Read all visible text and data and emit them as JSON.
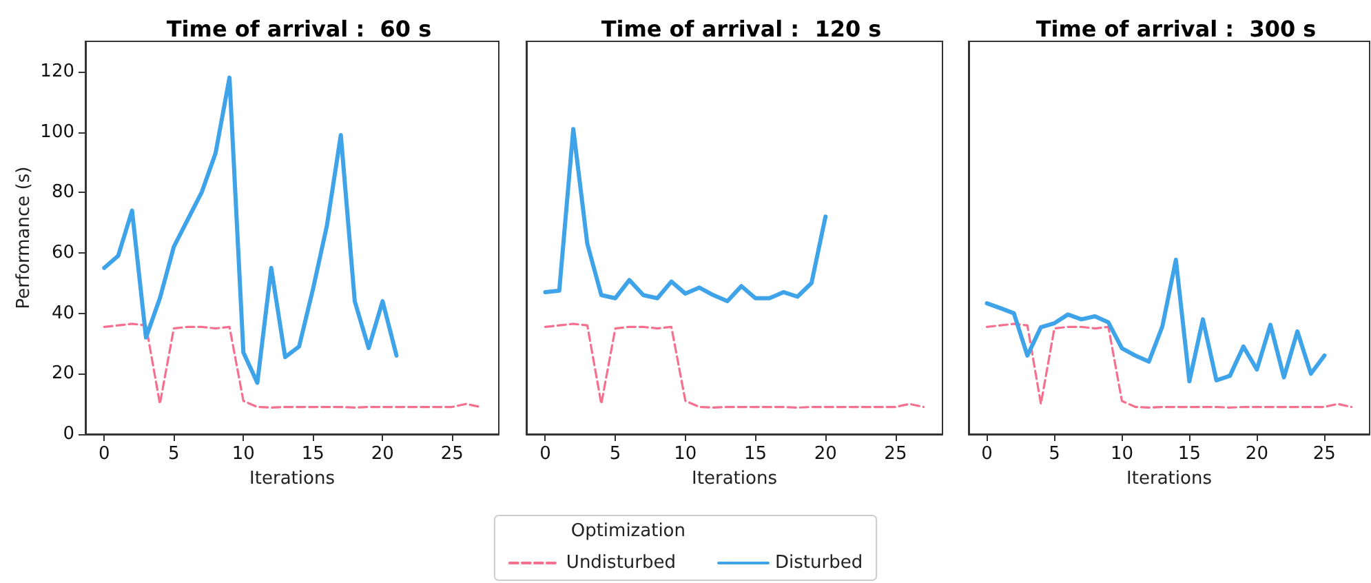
{
  "chart_data": [
    {
      "type": "line",
      "title": "Time of arrival :  60 s",
      "xlabel": "Iterations",
      "ylabel": "Performance (s)",
      "legend_title": "Optimization",
      "legend": "bottom",
      "grid": false,
      "marker": "none",
      "xlim": [
        -1.35,
        28.35
      ],
      "xticks": [
        0,
        5,
        10,
        15,
        20,
        25
      ],
      "ylim": [
        0,
        130
      ],
      "yticks": [
        0,
        20,
        40,
        60,
        80,
        100,
        120
      ],
      "series": [
        {
          "name": "Undisturbed",
          "color": "#f5708e",
          "line_style": "dashed",
          "x": [
            0,
            1,
            2,
            3,
            4,
            5,
            6,
            7,
            8,
            9,
            10,
            11,
            12,
            13,
            14,
            15,
            16,
            17,
            18,
            19,
            20,
            21,
            22,
            23,
            24,
            25,
            26,
            27
          ],
          "values": [
            35.5,
            36,
            36.5,
            36,
            10,
            35,
            35.5,
            35.5,
            35,
            35.5,
            11,
            9,
            8.8,
            9,
            9,
            9,
            9,
            9,
            8.8,
            9,
            9,
            9,
            9,
            9,
            9,
            9,
            10,
            9
          ]
        },
        {
          "name": "Disturbed",
          "color": "#3ea3e8",
          "line_style": "solid",
          "x": [
            0,
            1,
            2,
            3,
            4,
            5,
            6,
            7,
            8,
            9,
            10,
            11,
            12,
            13,
            14,
            15,
            16,
            17,
            18,
            19,
            20,
            21
          ],
          "values": [
            55,
            59,
            74,
            32,
            45,
            62,
            71,
            80,
            93,
            118,
            27,
            17,
            55,
            25.5,
            29,
            48,
            69,
            99,
            44,
            28.5,
            44,
            26
          ]
        }
      ]
    },
    {
      "type": "line",
      "title": "Time of arrival :  120 s",
      "xlabel": "Iterations",
      "grid": false,
      "marker": "none",
      "tick_labels": "x",
      "xlim": [
        -1.35,
        28.35
      ],
      "xticks": [
        0,
        5,
        10,
        15,
        20,
        25
      ],
      "ylim": [
        0,
        130
      ],
      "series": [
        {
          "color": "#f5708e",
          "line_style": "dashed",
          "x": [
            0,
            1,
            2,
            3,
            4,
            5,
            6,
            7,
            8,
            9,
            10,
            11,
            12,
            13,
            14,
            15,
            16,
            17,
            18,
            19,
            20,
            21,
            22,
            23,
            24,
            25,
            26,
            27
          ],
          "values": [
            35.5,
            36,
            36.5,
            36,
            10,
            35,
            35.5,
            35.5,
            35,
            35.5,
            11,
            9,
            8.8,
            9,
            9,
            9,
            9,
            9,
            8.8,
            9,
            9,
            9,
            9,
            9,
            9,
            9,
            10,
            9
          ]
        },
        {
          "color": "#3ea3e8",
          "line_style": "solid",
          "x": [
            0,
            1,
            2,
            3,
            4,
            5,
            6,
            7,
            8,
            9,
            10,
            11,
            12,
            13,
            14,
            15,
            16,
            17,
            18,
            19,
            20
          ],
          "values": [
            47,
            47.5,
            101,
            63,
            46,
            45,
            51,
            46,
            45,
            50.5,
            46.5,
            48.5,
            46,
            44,
            49,
            45,
            45,
            47,
            45.5,
            50,
            72
          ]
        }
      ]
    },
    {
      "type": "line",
      "title": "Time of arrival :  300 s",
      "xlabel": "Iterations",
      "grid": false,
      "marker": "none",
      "tick_labels": "x",
      "xlim": [
        -1.35,
        28.35
      ],
      "xticks": [
        0,
        5,
        10,
        15,
        20,
        25
      ],
      "ylim": [
        0,
        130
      ],
      "series": [
        {
          "color": "#f5708e",
          "line_style": "dashed",
          "x": [
            0,
            1,
            2,
            3,
            4,
            5,
            6,
            7,
            8,
            9,
            10,
            11,
            12,
            13,
            14,
            15,
            16,
            17,
            18,
            19,
            20,
            21,
            22,
            23,
            24,
            25,
            26,
            27
          ],
          "values": [
            35.5,
            36,
            36.5,
            36,
            10,
            35,
            35.5,
            35.5,
            35,
            35.5,
            11,
            9,
            8.8,
            9,
            9,
            9,
            9,
            9,
            8.8,
            9,
            9,
            9,
            9,
            9,
            9,
            9,
            10,
            9
          ]
        },
        {
          "color": "#3ea3e8",
          "line_style": "solid",
          "x": [
            0,
            1,
            2,
            3,
            4,
            5,
            6,
            7,
            8,
            9,
            10,
            11,
            12,
            13,
            14,
            15,
            16,
            17,
            18,
            19,
            20,
            21,
            22,
            23,
            24,
            25
          ],
          "values": [
            43.3,
            41.7,
            40,
            26,
            35.4,
            36.7,
            39.6,
            38,
            39,
            37,
            28.4,
            26,
            24,
            35.7,
            57.7,
            17.5,
            38,
            17.8,
            19.3,
            29,
            21.4,
            36.2,
            18.8,
            34,
            20,
            26
          ]
        }
      ]
    }
  ]
}
